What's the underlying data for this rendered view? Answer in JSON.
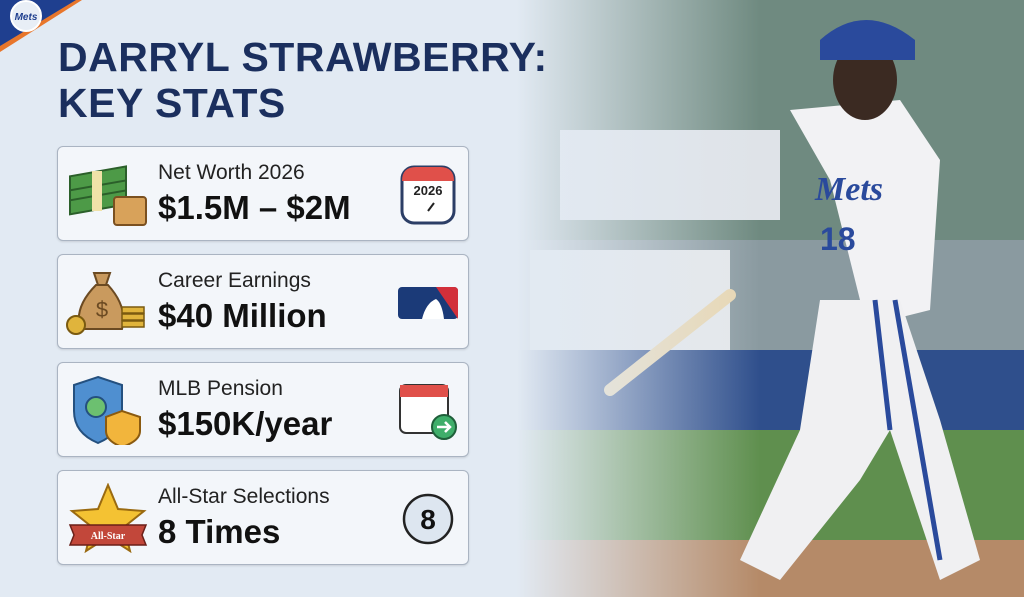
{
  "title": {
    "line1": "DARRYL STRAWBERRY:",
    "line2": "KEY STATS"
  },
  "logo_text": "Mets",
  "photo": {
    "jersey_text": "Mets",
    "jersey_number": "18"
  },
  "cards": [
    {
      "label": "Net Worth 2026",
      "value": "$1.5M – $2M",
      "icon": "money-stack-icon",
      "right_icon": "calendar-clock-icon",
      "right_text": "2026"
    },
    {
      "label": "Career Earnings",
      "value": "$40 Million",
      "icon": "money-bag-icon",
      "right_icon": "mlb-logo-icon"
    },
    {
      "label": "MLB Pension",
      "value": "$150K/year",
      "icon": "shield-check-icon",
      "right_icon": "calendar-arrow-icon"
    },
    {
      "label": "All-Star Selections",
      "value": "8 Times",
      "icon": "all-star-icon",
      "icon_text": "All-Star",
      "right_icon": "number-badge-icon",
      "right_text": "8"
    }
  ],
  "colors": {
    "navy": "#1b2f5e",
    "orange": "#e8762b",
    "mets_blue": "#2a4a9c"
  }
}
